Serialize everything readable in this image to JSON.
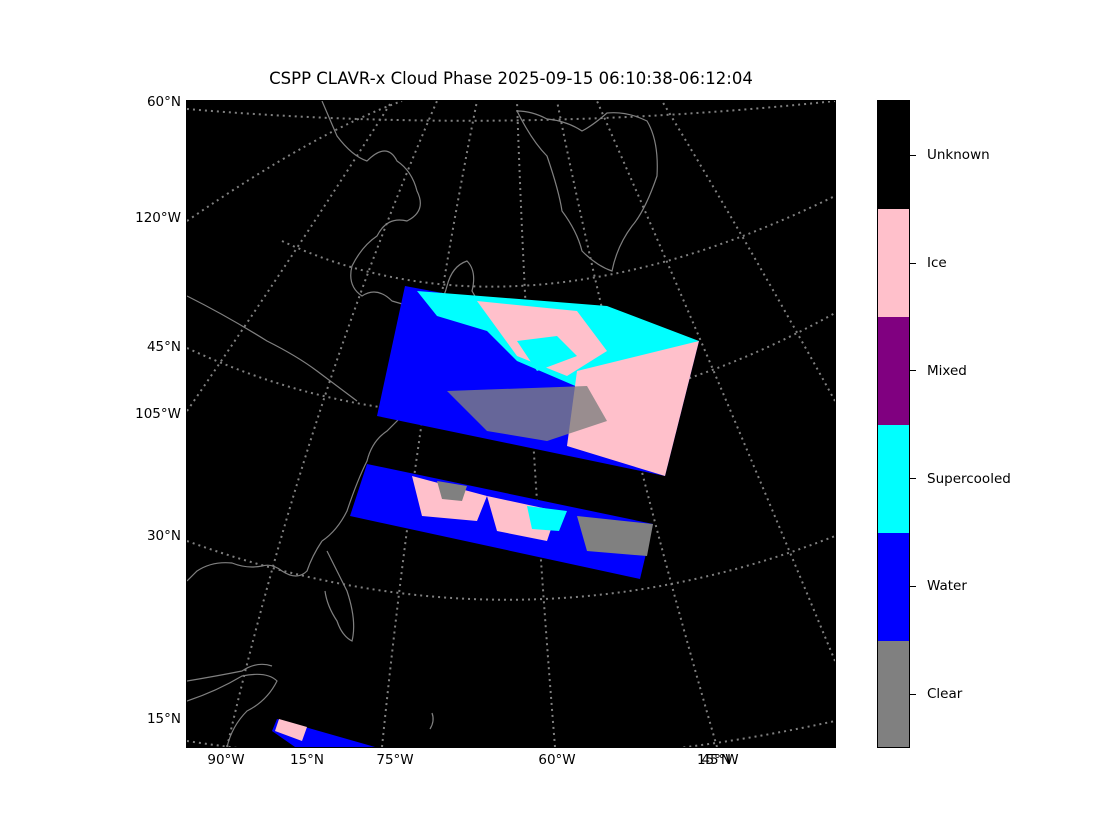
{
  "title": "CSPP CLAVR-x Cloud Phase 2025-09-15 06:10:38-06:12:04",
  "left_labels": {
    "lat60": "60°N",
    "lon120": "120°W",
    "lat45": "45°N",
    "lon105": "105°W",
    "lat30": "30°N",
    "lat15": "15°N"
  },
  "bottom_labels": {
    "lon90": "90°W",
    "lat15b": "15°N",
    "lon75": "75°W",
    "lon60": "60°W",
    "lon45": "45°W",
    "lat15c": "15°N"
  },
  "colorbar": {
    "classes": [
      {
        "label": "Unknown",
        "color": "#000000"
      },
      {
        "label": "Ice",
        "color": "#ffc0cb"
      },
      {
        "label": "Mixed",
        "color": "#800080"
      },
      {
        "label": "Supercooled",
        "color": "#00ffff"
      },
      {
        "label": "Water",
        "color": "#0000ff"
      },
      {
        "label": "Clear",
        "color": "#808080"
      }
    ]
  },
  "colors": {
    "background": "#000000",
    "coastline": "#808080",
    "graticule": "#808080"
  }
}
